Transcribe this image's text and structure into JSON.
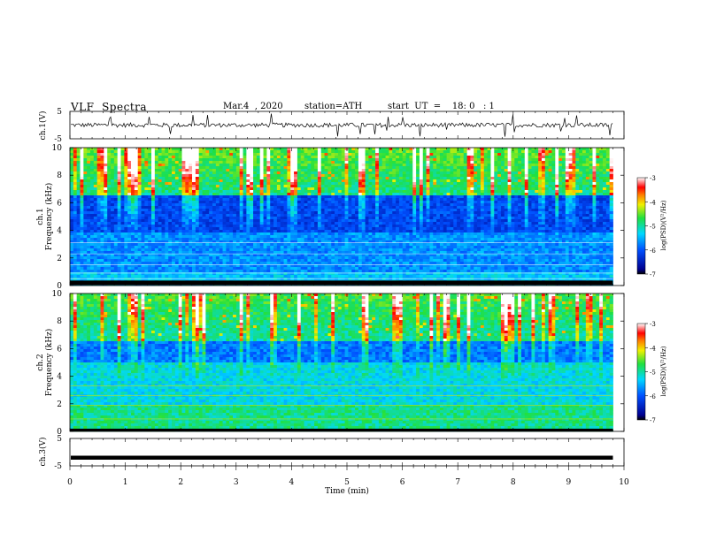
{
  "header": {
    "title": "VLF  Spectra",
    "date": "Mar.4  , 2020",
    "station": "station=ATH",
    "start": "start  UT  =    18: 0   : 1"
  },
  "chart_data": [
    {
      "type": "line",
      "name": "ch1-waveform",
      "ylabel": "ch.1(V)",
      "ylim": [
        -5,
        5
      ],
      "yticks": [
        "5",
        "-5"
      ],
      "xlim": [
        0,
        10
      ],
      "data_end_min": 9.8
    },
    {
      "type": "heatmap",
      "name": "ch1-spectrogram",
      "ylabel_line1": "ch.1",
      "ylabel_line2": "Frequency (kHz)",
      "ylim": [
        0,
        10
      ],
      "yticks": [
        "0",
        "2",
        "4",
        "6",
        "8",
        "10"
      ],
      "xlim": [
        0,
        10
      ],
      "colorbar": {
        "label": "log(PSD)(V²/Hz)",
        "ticks": [
          "-3",
          "-4",
          "-5",
          "-6",
          "-7"
        ],
        "range": [
          -7,
          -3
        ]
      }
    },
    {
      "type": "heatmap",
      "name": "ch2-spectrogram",
      "ylabel_line1": "ch.2",
      "ylabel_line2": "Frequency (kHz)",
      "ylim": [
        0,
        10
      ],
      "yticks": [
        "0",
        "2",
        "4",
        "6",
        "8",
        "10"
      ],
      "xlim": [
        0,
        10
      ],
      "colorbar": {
        "label": "log(PSD)(V²/Hz)",
        "ticks": [
          "-3",
          "-4",
          "-5",
          "-6",
          "-7"
        ],
        "range": [
          -7,
          -3
        ]
      }
    },
    {
      "type": "line",
      "name": "ch3-waveform",
      "ylabel": "ch.3(V)",
      "ylim": [
        -5,
        5
      ],
      "yticks": [
        "5",
        "-5"
      ],
      "xlim": [
        0,
        10
      ],
      "data_end_min": 9.8,
      "level_v": -2
    }
  ],
  "xaxis": {
    "label": "Time  (min)",
    "ticks": [
      "0",
      "1",
      "2",
      "3",
      "4",
      "5",
      "6",
      "7",
      "8",
      "9",
      "10"
    ],
    "range": [
      0,
      10
    ]
  }
}
